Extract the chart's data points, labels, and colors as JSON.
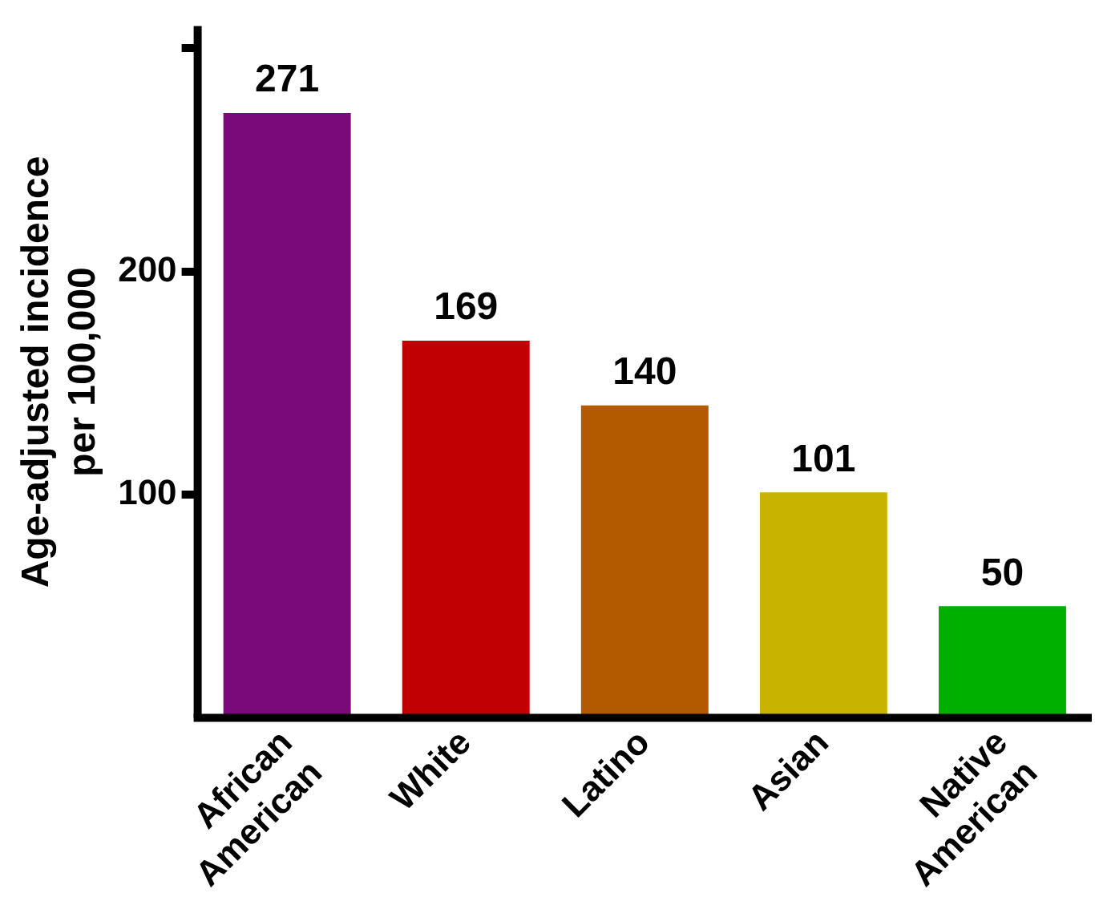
{
  "chart_data": {
    "type": "bar",
    "ylabel": "Age-adjusted incidence\nper 100,000",
    "categories": [
      "African American",
      "White",
      "Latino",
      "Asian",
      "Native American"
    ],
    "values": [
      271,
      169,
      140,
      101,
      50
    ],
    "colors": [
      "#7a0a7a",
      "#c00000",
      "#b35a00",
      "#c8b400",
      "#00b000"
    ],
    "ylim": [
      0,
      310
    ],
    "yticks": [
      100,
      200,
      {
        "value": 300,
        "label": null
      }
    ],
    "grid": false,
    "legend": false,
    "data_labels": true
  }
}
